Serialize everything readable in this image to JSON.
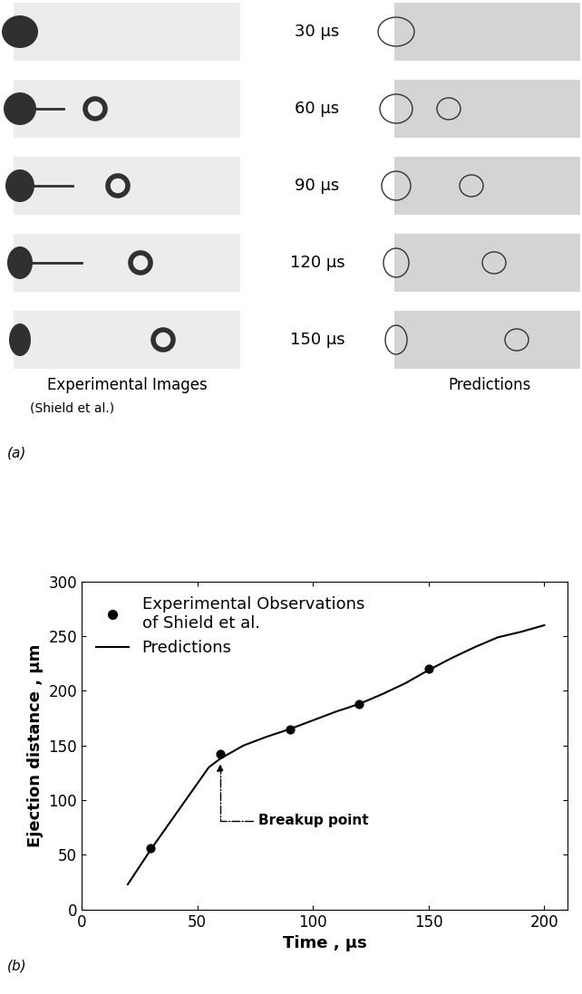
{
  "panel_a": {
    "label": "(a)",
    "times": [
      "30 µs",
      "60 µs",
      "90 µs",
      "120 µs",
      "150 µs"
    ],
    "left_header": "Experimental Images",
    "left_subheader": "(Shield et al.)",
    "right_header": "Predictions"
  },
  "chart_data": {
    "type": "line",
    "panel_label": "(b)",
    "x_label": "Time , µs",
    "y_label": "Ejection distance , µm",
    "xlim": [
      0,
      210
    ],
    "xticks": [
      0,
      50,
      100,
      150,
      200
    ],
    "ylim": [
      0,
      300
    ],
    "yticks": [
      0,
      50,
      100,
      150,
      200,
      250,
      300
    ],
    "legend": "upper left",
    "grid": false,
    "series": [
      {
        "name": "Experimental Observations\nof Shield et al.",
        "type": "scatter",
        "color": "#000000",
        "marker": "o",
        "x": [
          30,
          60,
          90,
          120,
          150
        ],
        "values": [
          56,
          142,
          165,
          188,
          220
        ]
      },
      {
        "name": "Predictions",
        "type": "line",
        "color": "#000000",
        "line_style": "solid",
        "x": [
          20,
          30,
          40,
          50,
          55,
          60,
          70,
          80,
          90,
          100,
          110,
          120,
          130,
          140,
          150,
          160,
          170,
          180,
          190,
          200
        ],
        "values": [
          23,
          55,
          85,
          115,
          130,
          138,
          150,
          158,
          165,
          173,
          181,
          188,
          197,
          207,
          219,
          230,
          240,
          249,
          254,
          260
        ]
      }
    ],
    "annotations": [
      {
        "text": "Breakup point",
        "x": 60,
        "y": 133
      }
    ]
  }
}
